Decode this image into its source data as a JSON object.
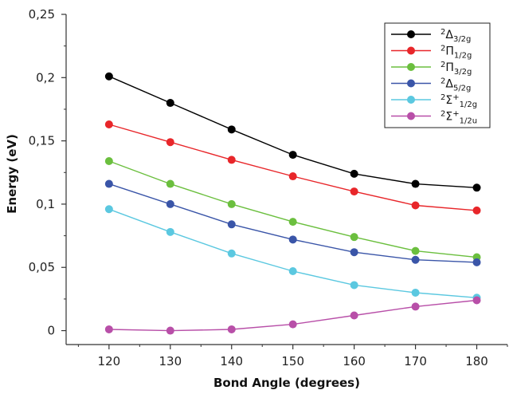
{
  "chart_data": {
    "type": "line",
    "title": "",
    "xlabel": "Bond Angle (degrees)",
    "ylabel": "Energy (eV)",
    "x": [
      120,
      130,
      140,
      150,
      160,
      170,
      180
    ],
    "xlim": [
      113,
      185
    ],
    "ylim": [
      -0.011,
      0.25
    ],
    "x_ticks": [
      "120",
      "130",
      "140",
      "150",
      "160",
      "170",
      "180"
    ],
    "y_ticks": [
      "0",
      "0,05",
      "0,1",
      "0,15",
      "0,2",
      "0,25"
    ],
    "grid": false,
    "legend_position": "top-right",
    "series": [
      {
        "name": "2Δ3/2g",
        "legend": {
          "sup": "2",
          "symbol": "Δ",
          "supAfter": "",
          "sub": "3/2g"
        },
        "color": "#000000",
        "values": [
          0.201,
          0.18,
          0.159,
          0.139,
          0.124,
          0.116,
          0.113
        ]
      },
      {
        "name": "2Π1/2g",
        "legend": {
          "sup": "2",
          "symbol": "Π",
          "supAfter": "",
          "sub": "1/2g"
        },
        "color": "#e8262a",
        "values": [
          0.163,
          0.149,
          0.135,
          0.122,
          0.11,
          0.099,
          0.095
        ]
      },
      {
        "name": "2Π3/2g",
        "legend": {
          "sup": "2",
          "symbol": "Π",
          "supAfter": "",
          "sub": "3/2g"
        },
        "color": "#6bbf3e",
        "values": [
          0.134,
          0.116,
          0.1,
          0.086,
          0.074,
          0.063,
          0.058
        ]
      },
      {
        "name": "2Δ5/2g",
        "legend": {
          "sup": "2",
          "symbol": "Δ",
          "supAfter": "",
          "sub": "5/2g"
        },
        "color": "#3a55a8",
        "values": [
          0.116,
          0.1,
          0.084,
          0.072,
          0.062,
          0.056,
          0.054
        ]
      },
      {
        "name": "2Σ+1/2g",
        "legend": {
          "sup": "2",
          "symbol": "Σ",
          "supAfter": "+",
          "sub": "1/2g"
        },
        "color": "#5bc8e0",
        "values": [
          0.096,
          0.078,
          0.061,
          0.047,
          0.036,
          0.03,
          0.026
        ]
      },
      {
        "name": "2Σ+1/2u",
        "legend": {
          "sup": "2",
          "symbol": "Σ",
          "supAfter": "+",
          "sub": "1/2u"
        },
        "color": "#b84fa8",
        "values": [
          0.001,
          0.0,
          0.001,
          0.005,
          0.012,
          0.019,
          0.024
        ]
      }
    ]
  }
}
